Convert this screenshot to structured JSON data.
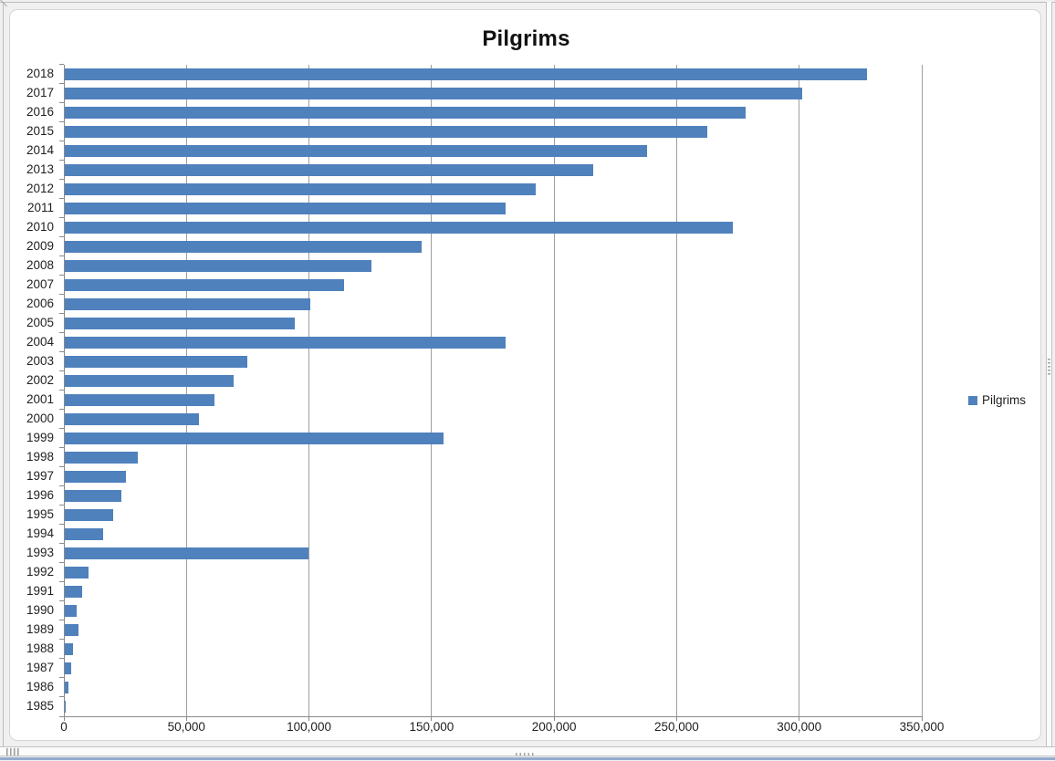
{
  "chart_data": {
    "type": "bar",
    "orientation": "horizontal",
    "title": "Pilgrims",
    "xlabel": "",
    "ylabel": "",
    "grid": true,
    "xlim": [
      0,
      350000
    ],
    "x_tick_step": 50000,
    "x_ticks": [
      {
        "value": 0,
        "label": "0"
      },
      {
        "value": 50000,
        "label": "50,000"
      },
      {
        "value": 100000,
        "label": "100,000"
      },
      {
        "value": 150000,
        "label": "150,000"
      },
      {
        "value": 200000,
        "label": "200,000"
      },
      {
        "value": 250000,
        "label": "250,000"
      },
      {
        "value": 300000,
        "label": "300,000"
      },
      {
        "value": 350000,
        "label": "350,000"
      }
    ],
    "categories": [
      "2018",
      "2017",
      "2016",
      "2015",
      "2014",
      "2013",
      "2012",
      "2011",
      "2010",
      "2009",
      "2008",
      "2007",
      "2006",
      "2005",
      "2004",
      "2003",
      "2002",
      "2001",
      "2000",
      "1999",
      "1998",
      "1997",
      "1996",
      "1995",
      "1994",
      "1993",
      "1992",
      "1991",
      "1990",
      "1989",
      "1988",
      "1987",
      "1986",
      "1985"
    ],
    "values": [
      327378,
      301036,
      277854,
      262458,
      237886,
      215880,
      192488,
      180000,
      272703,
      145877,
      125141,
      114026,
      100377,
      93924,
      179944,
      74614,
      68952,
      61418,
      55004,
      154613,
      30126,
      25179,
      23218,
      19821,
      15863,
      99436,
      9764,
      7274,
      4918,
      5760,
      3501,
      2905,
      1801,
      690
    ],
    "legend": {
      "label": "Pilgrims",
      "position": "right"
    },
    "colors": {
      "bar": "#4F81BD",
      "gridline": "#9e9e9e",
      "axis": "#8a8a8a",
      "text": "#1f1f1f",
      "title": "#111111"
    }
  }
}
